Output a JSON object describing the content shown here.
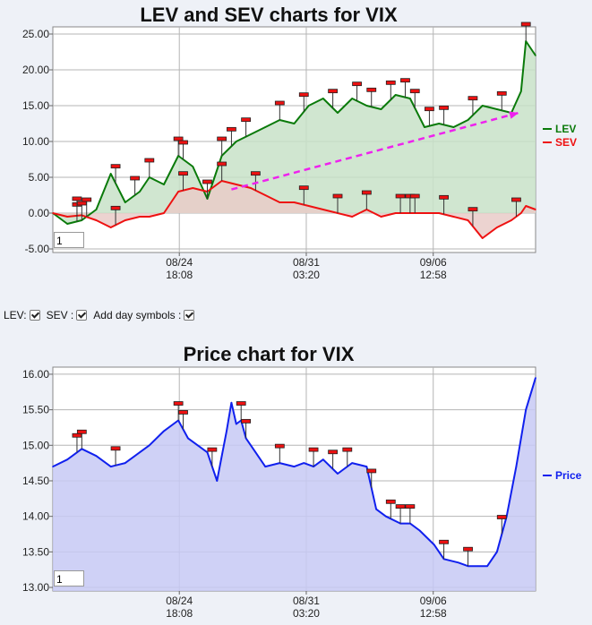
{
  "chart_data": [
    {
      "type": "line",
      "title": "LEV and SEV charts for VIX",
      "ylim": [
        -5.5,
        26
      ],
      "y_ticks": [
        "25.00",
        "20.00",
        "15.00",
        "10.00",
        "5.00",
        "0.00",
        "-5.00"
      ],
      "y_tick_values": [
        25,
        20,
        15,
        10,
        5,
        0,
        -5
      ],
      "x_ticks": [
        {
          "date": "08/24",
          "time": "18:08"
        },
        {
          "date": "08/31",
          "time": "03:20"
        },
        {
          "date": "09/06",
          "time": "12:58"
        }
      ],
      "x_tick_pos": [
        0.262,
        0.525,
        0.788
      ],
      "series": [
        {
          "name": "LEV",
          "color": "#0a7a0a",
          "fill": "#c8e2c8",
          "x": [
            0.0,
            0.03,
            0.06,
            0.09,
            0.12,
            0.15,
            0.18,
            0.2,
            0.23,
            0.26,
            0.29,
            0.32,
            0.35,
            0.38,
            0.41,
            0.44,
            0.47,
            0.5,
            0.53,
            0.56,
            0.59,
            0.62,
            0.65,
            0.68,
            0.71,
            0.74,
            0.77,
            0.8,
            0.83,
            0.86,
            0.89,
            0.92,
            0.95,
            0.97,
            0.98,
            1.0
          ],
          "values": [
            0.0,
            -1.5,
            -1.0,
            0.5,
            5.5,
            1.5,
            3.0,
            5.0,
            4.0,
            8.0,
            6.5,
            2.0,
            8.0,
            10.0,
            11.0,
            12.0,
            13.0,
            12.5,
            15.0,
            16.0,
            14.0,
            16.0,
            15.0,
            14.5,
            16.5,
            16.0,
            12.0,
            12.5,
            12.0,
            13.0,
            15.0,
            14.5,
            14.0,
            17.0,
            24.0,
            22.0
          ]
        },
        {
          "name": "SEV",
          "color": "#ee1111",
          "fill": "#e9cbc8",
          "x": [
            0.0,
            0.03,
            0.06,
            0.09,
            0.12,
            0.15,
            0.18,
            0.2,
            0.23,
            0.26,
            0.29,
            0.32,
            0.35,
            0.38,
            0.41,
            0.44,
            0.47,
            0.5,
            0.53,
            0.56,
            0.59,
            0.62,
            0.65,
            0.68,
            0.71,
            0.74,
            0.77,
            0.8,
            0.83,
            0.86,
            0.89,
            0.92,
            0.95,
            0.97,
            0.98,
            1.0
          ],
          "values": [
            0.0,
            -0.5,
            -0.3,
            -1.0,
            -2.0,
            -1.0,
            -0.5,
            -0.5,
            0.0,
            3.0,
            3.5,
            3.0,
            4.5,
            4.0,
            3.5,
            2.5,
            1.5,
            1.5,
            1.0,
            0.5,
            0.0,
            -0.5,
            0.5,
            -0.5,
            0.0,
            0.0,
            0.0,
            0.0,
            -0.5,
            -1.0,
            -3.5,
            -2.0,
            -1.0,
            0.0,
            1.0,
            0.5
          ]
        }
      ],
      "trend_arrow": {
        "x": [
          0.37,
          0.965
        ],
        "values": [
          3.3,
          14.0
        ],
        "color": "#ee22ee"
      },
      "day_markers": [
        {
          "series": "LEV",
          "x": [
            0.05,
            0.06,
            0.07,
            0.13,
            0.17,
            0.2,
            0.26,
            0.27,
            0.32,
            0.35,
            0.37,
            0.4,
            0.47,
            0.52,
            0.58,
            0.63,
            0.66,
            0.7,
            0.73,
            0.75,
            0.78,
            0.81,
            0.87,
            0.93,
            0.98
          ]
        },
        {
          "series": "SEV",
          "x": [
            0.05,
            0.13,
            0.27,
            0.35,
            0.42,
            0.52,
            0.59,
            0.65,
            0.72,
            0.74,
            0.75,
            0.81,
            0.87,
            0.96
          ]
        }
      ],
      "input_value": "1"
    },
    {
      "type": "area",
      "title": "Price chart for VIX",
      "ylim": [
        12.95,
        16.1
      ],
      "y_ticks": [
        "16.00",
        "15.50",
        "15.00",
        "14.50",
        "14.00",
        "13.50",
        "13.00"
      ],
      "y_tick_values": [
        16.0,
        15.5,
        15.0,
        14.5,
        14.0,
        13.5,
        13.0
      ],
      "x_ticks": [
        {
          "date": "08/24",
          "time": "18:08"
        },
        {
          "date": "08/31",
          "time": "03:20"
        },
        {
          "date": "09/06",
          "time": "12:58"
        }
      ],
      "x_tick_pos": [
        0.262,
        0.525,
        0.788
      ],
      "series": [
        {
          "name": "Price",
          "color": "#1020ee",
          "fill": "#c7c9f5",
          "x": [
            0.0,
            0.03,
            0.06,
            0.09,
            0.12,
            0.15,
            0.18,
            0.2,
            0.23,
            0.26,
            0.28,
            0.3,
            0.32,
            0.34,
            0.36,
            0.37,
            0.38,
            0.39,
            0.4,
            0.42,
            0.44,
            0.47,
            0.5,
            0.52,
            0.54,
            0.56,
            0.59,
            0.62,
            0.65,
            0.67,
            0.69,
            0.72,
            0.74,
            0.76,
            0.79,
            0.81,
            0.84,
            0.86,
            0.88,
            0.9,
            0.92,
            0.94,
            0.96,
            0.98,
            1.0
          ],
          "values": [
            14.7,
            14.8,
            14.95,
            14.85,
            14.7,
            14.75,
            14.9,
            15.0,
            15.2,
            15.35,
            15.1,
            15.0,
            14.9,
            14.5,
            15.2,
            15.6,
            15.3,
            15.35,
            15.1,
            14.9,
            14.7,
            14.75,
            14.7,
            14.75,
            14.7,
            14.8,
            14.6,
            14.75,
            14.7,
            14.1,
            14.0,
            13.9,
            13.9,
            13.8,
            13.6,
            13.4,
            13.35,
            13.3,
            13.3,
            13.3,
            13.5,
            14.0,
            14.7,
            15.5,
            15.95
          ]
        }
      ],
      "day_markers": [
        {
          "series": "Price",
          "x": [
            0.05,
            0.06,
            0.13,
            0.26,
            0.27,
            0.33,
            0.39,
            0.4,
            0.47,
            0.54,
            0.58,
            0.61,
            0.66,
            0.7,
            0.72,
            0.74,
            0.81,
            0.86,
            0.93
          ]
        }
      ],
      "input_value": "1"
    }
  ],
  "controls": {
    "lev_label": "LEV:",
    "sev_label": "SEV :",
    "day_label": "Add day symbols :"
  }
}
